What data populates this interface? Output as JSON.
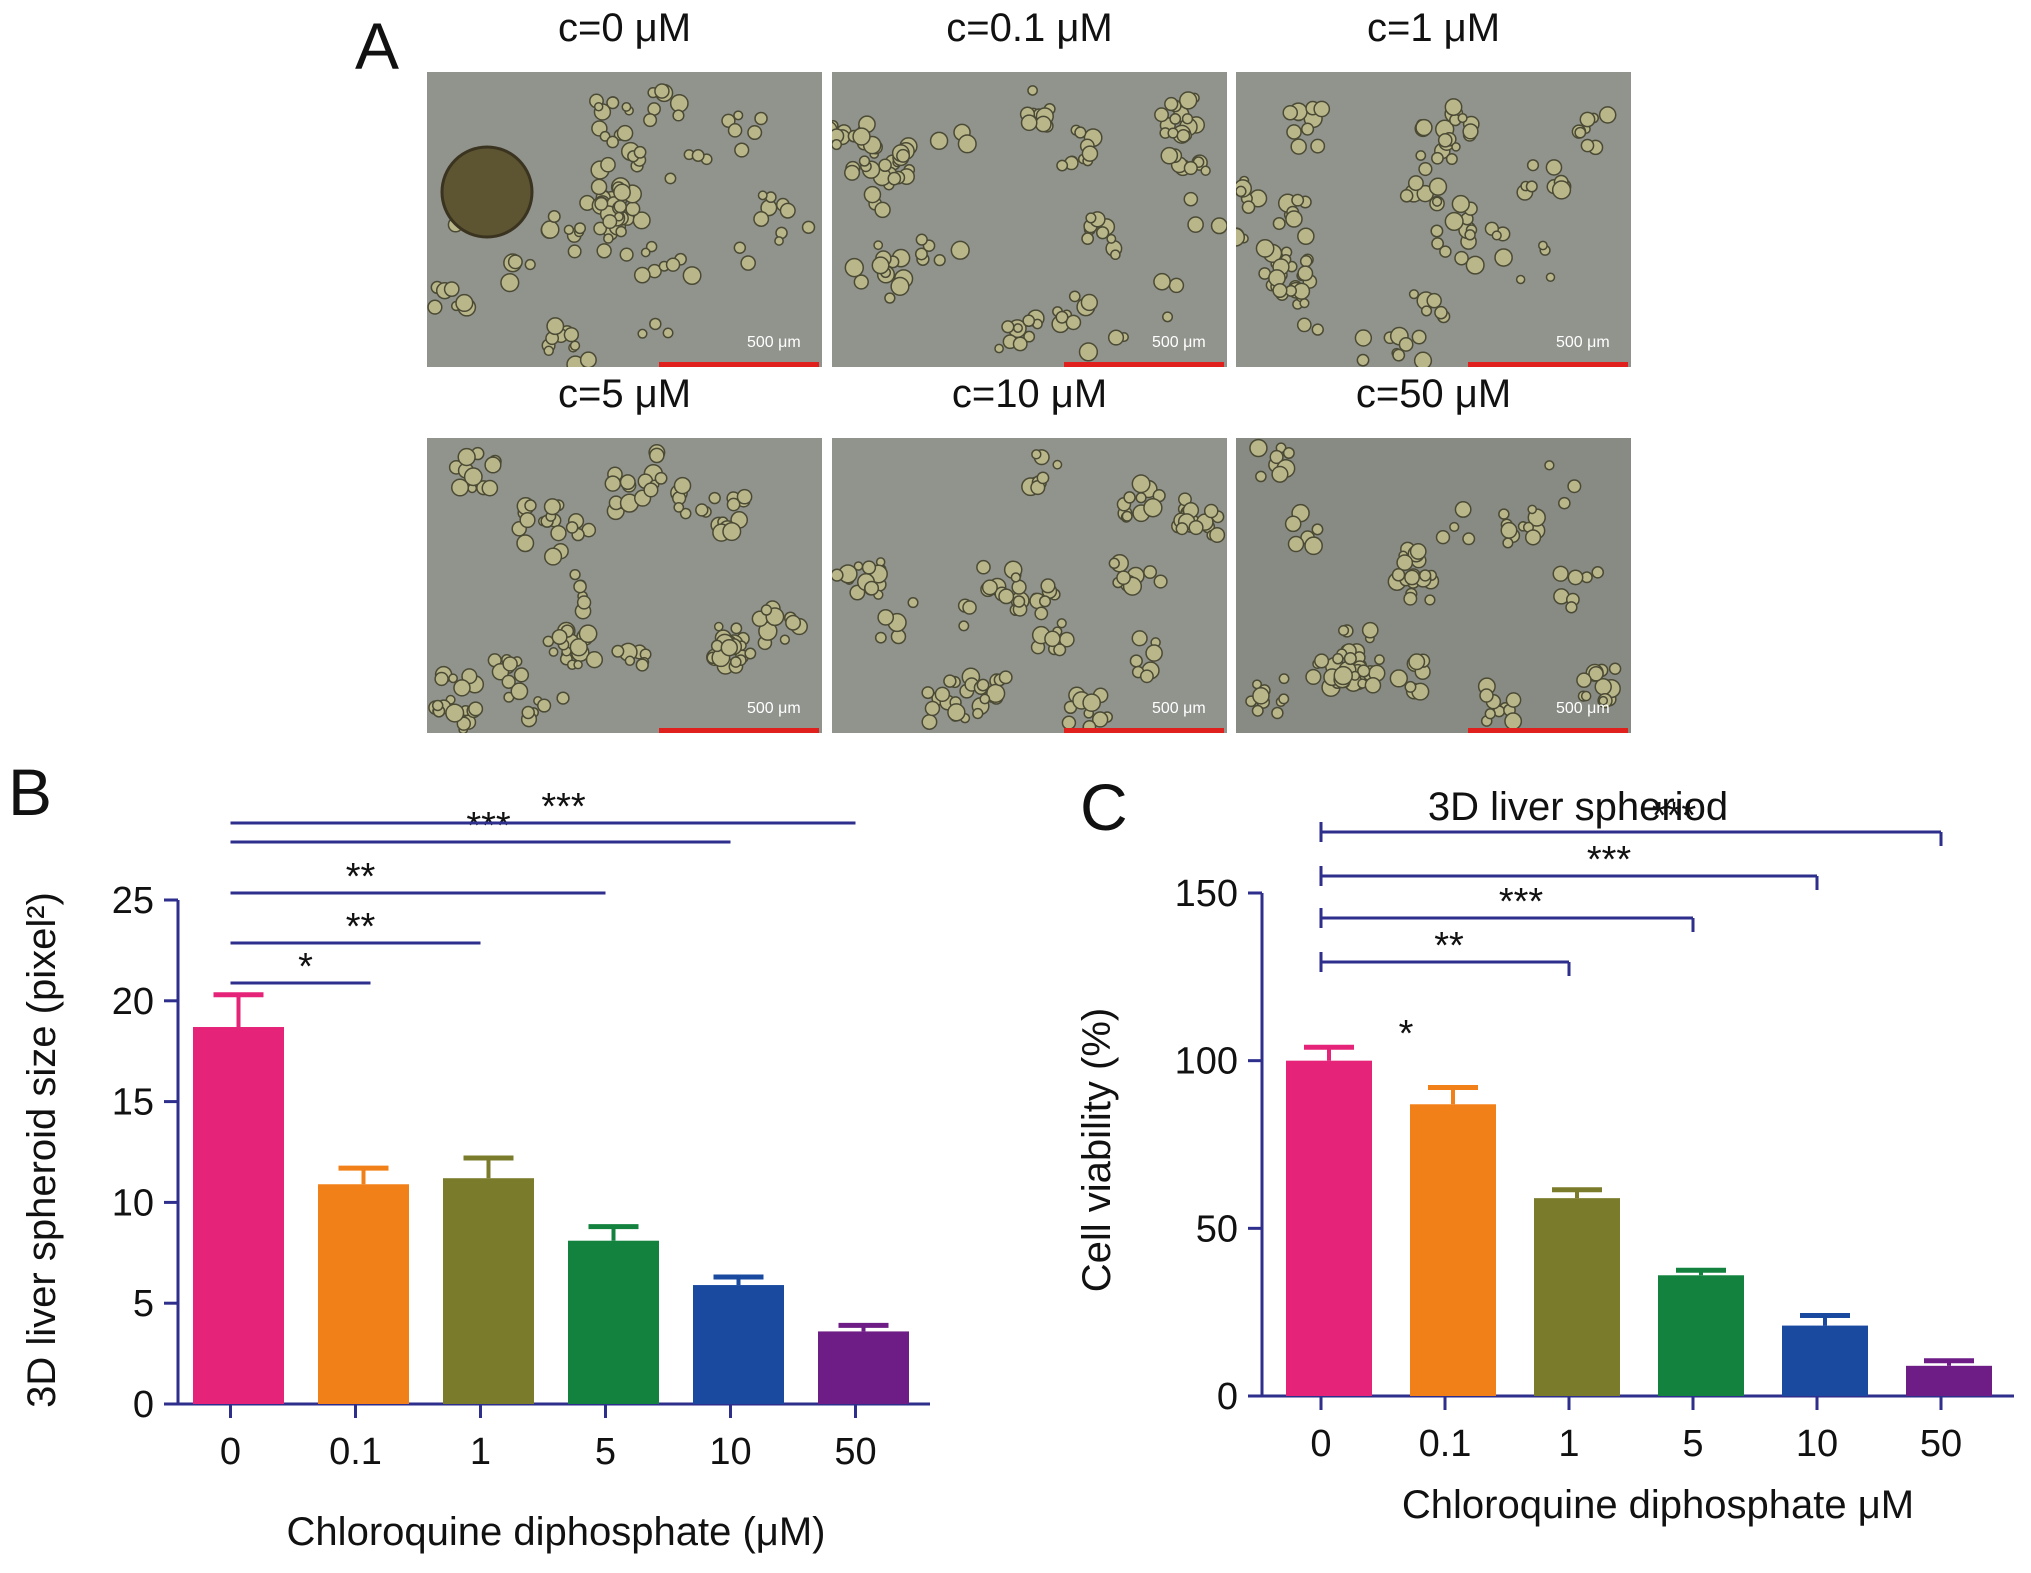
{
  "panel_a": {
    "letter": "A",
    "images": [
      {
        "title": "c=0 μM",
        "scale_label": "500 μm"
      },
      {
        "title": "c=0.1 μM",
        "scale_label": "500 μm"
      },
      {
        "title": "c=1 μM",
        "scale_label": "500 μm"
      },
      {
        "title": "c=5 μM",
        "scale_label": "500 μm"
      },
      {
        "title": "c=10 μM",
        "scale_label": "500 μm"
      },
      {
        "title": "c=50 μM",
        "scale_label": "500 μm"
      }
    ]
  },
  "colors": {
    "bars": [
      "#e52479",
      "#f28018",
      "#7b7b2c",
      "#14823f",
      "#1a4aa0",
      "#6e1c86"
    ],
    "axis": "#2e2e8c",
    "sig_line": "#2e2e8c",
    "scale_bar": "#e0201c"
  },
  "chart_data": [
    {
      "panel": "B",
      "type": "bar",
      "title": "",
      "xlabel": "Chloroquine diphosphate (μM)",
      "ylabel": "3D liver spheroid size (pixel²)",
      "categories": [
        "0",
        "0.1",
        "1",
        "5",
        "10",
        "50"
      ],
      "values": [
        18.7,
        10.9,
        11.2,
        8.1,
        5.9,
        3.6
      ],
      "errors": [
        1.6,
        0.8,
        1.0,
        0.7,
        0.4,
        0.3
      ],
      "ylim": [
        0,
        25
      ],
      "yticks": [
        0,
        5,
        10,
        15,
        20,
        25
      ],
      "significance": [
        {
          "from": "0",
          "to": "0.1",
          "label": "*"
        },
        {
          "from": "0",
          "to": "1",
          "label": "**"
        },
        {
          "from": "0",
          "to": "5",
          "label": "**"
        },
        {
          "from": "0",
          "to": "10",
          "label": "***"
        },
        {
          "from": "0",
          "to": "50",
          "label": "***"
        }
      ]
    },
    {
      "panel": "C",
      "type": "bar",
      "title": "3D liver spheriod",
      "xlabel": "Chloroquine diphosphate μM",
      "ylabel": "Cell viability (%)",
      "categories": [
        "0",
        "0.1",
        "1",
        "5",
        "10",
        "50"
      ],
      "values": [
        100,
        87,
        59,
        36,
        21,
        9
      ],
      "errors": [
        4,
        5,
        2.5,
        1.5,
        3,
        1.5
      ],
      "ylim": [
        0,
        150
      ],
      "yticks": [
        0,
        50,
        100,
        150
      ],
      "significance": [
        {
          "from": "0",
          "to": "1",
          "label": "*"
        },
        {
          "from": "0",
          "to": "1",
          "label": "**"
        },
        {
          "from": "0",
          "to": "5",
          "label": "***"
        },
        {
          "from": "0",
          "to": "10",
          "label": "***"
        },
        {
          "from": "0",
          "to": "50",
          "label": "***"
        }
      ]
    }
  ]
}
